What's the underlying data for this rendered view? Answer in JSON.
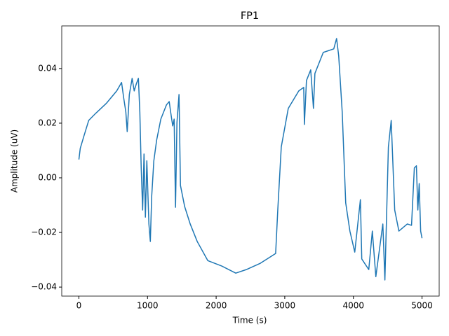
{
  "chart_data": {
    "type": "line",
    "title": "FP1",
    "x_label": "Time (s)",
    "y_label": "Amplitude (uV)",
    "color": "#1f77b4",
    "x": [
      0,
      20,
      71,
      143,
      245,
      398,
      551,
      622,
      653,
      684,
      704,
      735,
      776,
      806,
      837,
      867,
      888,
      908,
      929,
      949,
      969,
      990,
      1020,
      1041,
      1061,
      1092,
      1133,
      1194,
      1276,
      1316,
      1337,
      1367,
      1388,
      1408,
      1429,
      1459,
      1480,
      1541,
      1622,
      1724,
      1878,
      2082,
      2286,
      2439,
      2643,
      2867,
      2898,
      2949,
      3051,
      3204,
      3276,
      3286,
      3316,
      3378,
      3418,
      3439,
      3561,
      3714,
      3755,
      3786,
      3837,
      3888,
      3949,
      4020,
      4102,
      4122,
      4224,
      4276,
      4327,
      4429,
      4459,
      4510,
      4551,
      4602,
      4663,
      4786,
      4847,
      4888,
      4918,
      4939,
      4959,
      4980,
      5000
    ],
    "values": [
      0.0067,
      0.0108,
      0.0151,
      0.021,
      0.0236,
      0.0272,
      0.0318,
      0.0349,
      0.0292,
      0.0241,
      0.0169,
      0.0305,
      0.0364,
      0.0318,
      0.0344,
      0.0364,
      0.0241,
      0.0036,
      -0.0118,
      0.0087,
      -0.0144,
      0.0062,
      -0.0169,
      -0.0233,
      -0.0067,
      0.0062,
      0.0138,
      0.0215,
      0.0267,
      0.0279,
      0.0241,
      0.019,
      0.0215,
      -0.0108,
      0.0203,
      0.0305,
      -0.0028,
      -0.0105,
      -0.0169,
      -0.0233,
      -0.0303,
      -0.0323,
      -0.0349,
      -0.0336,
      -0.0313,
      -0.0277,
      -0.0118,
      0.0113,
      0.0254,
      0.0318,
      0.0331,
      0.0195,
      0.0356,
      0.0395,
      0.0254,
      0.0382,
      0.0459,
      0.0472,
      0.051,
      0.0446,
      0.0241,
      -0.0092,
      -0.0195,
      -0.0272,
      -0.008,
      -0.0297,
      -0.0336,
      -0.0195,
      -0.0362,
      -0.0169,
      -0.0374,
      0.0113,
      0.021,
      -0.0118,
      -0.0195,
      -0.0169,
      -0.0174,
      0.0036,
      0.0044,
      -0.0118,
      -0.0021,
      -0.0195,
      -0.0221
    ],
    "xlim": [
      -250,
      5250
    ],
    "ylim": [
      -0.0433,
      0.0556
    ],
    "xticks": [
      0,
      1000,
      2000,
      3000,
      4000,
      5000
    ],
    "yticks": [
      {
        "value": -0.04,
        "label": "−0.04"
      },
      {
        "value": -0.02,
        "label": "−0.02"
      },
      {
        "value": 0,
        "label": "0.00"
      },
      0.02,
      0.04
    ]
  }
}
